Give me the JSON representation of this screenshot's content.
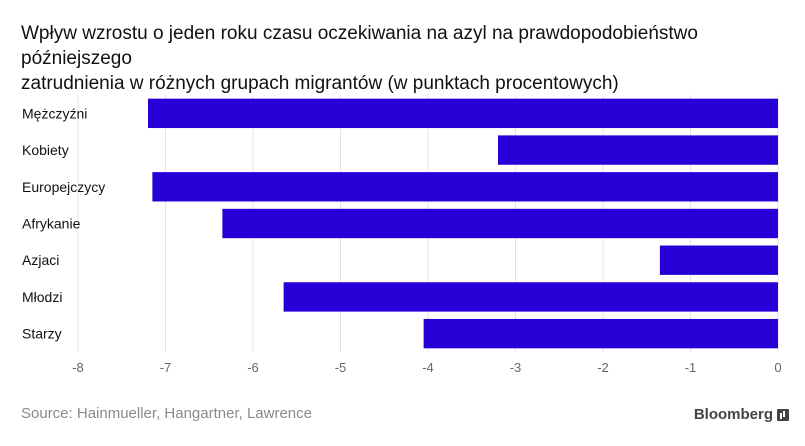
{
  "chart_data": {
    "type": "bar",
    "orientation": "horizontal",
    "title_lines": [
      "Wpływ wzrostu o jeden roku czasu oczekiwania na azyl na prawdopodobieństwo późniejszego",
      "zatrudnienia w różnych grupach migrantów (w punktach procentowych)"
    ],
    "categories": [
      "Mężczyźni",
      "Kobiety",
      "Europejczycy",
      "Afrykanie",
      "Azjaci",
      "Młodzi",
      "Starzy"
    ],
    "values": [
      -7.2,
      -3.2,
      -7.15,
      -6.35,
      -1.35,
      -5.65,
      -4.05
    ],
    "xlim": [
      -8,
      0
    ],
    "xticks": [
      -8,
      -7,
      -6,
      -5,
      -4,
      -3,
      -2,
      -1,
      0
    ],
    "xlabel": "",
    "ylabel": "",
    "grid": "vertical",
    "bar_color": "#2800d7",
    "grid_color": "#e4e4e4"
  },
  "footer": {
    "source": "Source: Hainmueller, Hangartner, Lawrence",
    "brand": "Bloomberg"
  }
}
